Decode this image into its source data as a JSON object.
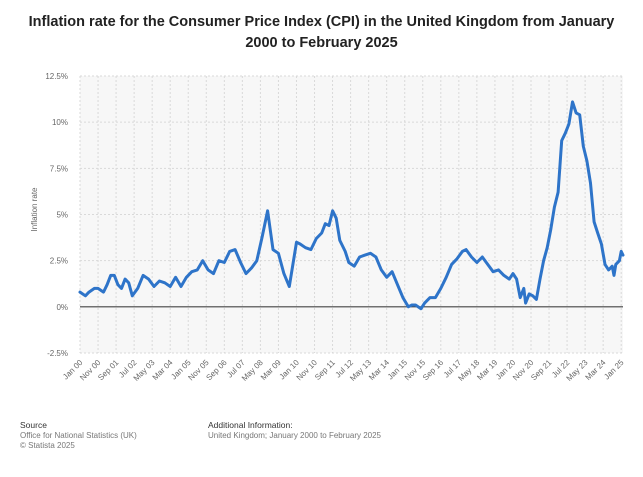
{
  "title": "Inflation rate for the Consumer Price Index (CPI) in the United Kingdom from January 2000 to February 2025",
  "footer": {
    "source_heading": "Source",
    "source_line1": "Office for National Statistics (UK)",
    "source_line2": "© Statista 2025",
    "additional_heading": "Additional Information:",
    "additional_line1": "United Kingdom; January 2000 to February 2025"
  },
  "colors": {
    "line": "#2e74c9",
    "grid": "#d9d9d9",
    "zero_line": "#444444",
    "axis_text": "#666666"
  },
  "chart_data": {
    "type": "line",
    "title": "Inflation rate for the Consumer Price Index (CPI) in the United Kingdom from January 2000 to February 2025",
    "xlabel": "",
    "ylabel": "Inflation rate",
    "ylim": [
      -2.5,
      12.5
    ],
    "yticks": [
      -2.5,
      0,
      2.5,
      5,
      7.5,
      10,
      12.5
    ],
    "ytick_labels": [
      "-2.5%",
      "0%",
      "2.5%",
      "5%",
      "7.5%",
      "10%",
      "12.5%"
    ],
    "xlim": [
      "2000-01",
      "2025-02"
    ],
    "xtick_labels": [
      {
        "label": "Jan 00",
        "date": "2000-01"
      },
      {
        "label": "Nov 00",
        "date": "2000-11"
      },
      {
        "label": "Sep 01",
        "date": "2001-09"
      },
      {
        "label": "Jul 02",
        "date": "2002-07"
      },
      {
        "label": "May 03",
        "date": "2003-05"
      },
      {
        "label": "Mar 04",
        "date": "2004-03"
      },
      {
        "label": "Jan 05",
        "date": "2005-01"
      },
      {
        "label": "Nov 05",
        "date": "2005-11"
      },
      {
        "label": "Sep 06",
        "date": "2006-09"
      },
      {
        "label": "Jul 07",
        "date": "2007-07"
      },
      {
        "label": "May 08",
        "date": "2008-05"
      },
      {
        "label": "Mar 09",
        "date": "2009-03"
      },
      {
        "label": "Jan 10",
        "date": "2010-01"
      },
      {
        "label": "Nov 10",
        "date": "2010-11"
      },
      {
        "label": "Sep 11",
        "date": "2011-09"
      },
      {
        "label": "Jul 12",
        "date": "2012-07"
      },
      {
        "label": "May 13",
        "date": "2013-05"
      },
      {
        "label": "Mar 14",
        "date": "2014-03"
      },
      {
        "label": "Jan 15",
        "date": "2015-01"
      },
      {
        "label": "Nov 15",
        "date": "2015-11"
      },
      {
        "label": "Sep 16",
        "date": "2016-09"
      },
      {
        "label": "Jul 17",
        "date": "2017-07"
      },
      {
        "label": "May 18",
        "date": "2018-05"
      },
      {
        "label": "Mar 19",
        "date": "2019-03"
      },
      {
        "label": "Jan 20",
        "date": "2020-01"
      },
      {
        "label": "Nov 20",
        "date": "2020-11"
      },
      {
        "label": "Sep 21",
        "date": "2021-09"
      },
      {
        "label": "Jul 22",
        "date": "2022-07"
      },
      {
        "label": "May 23",
        "date": "2023-05"
      },
      {
        "label": "Mar 24",
        "date": "2024-03"
      },
      {
        "label": "Jan 25",
        "date": "2025-01"
      }
    ],
    "grid": true,
    "series": [
      {
        "name": "",
        "points": [
          [
            "2000-01",
            0.8
          ],
          [
            "2000-04",
            0.6
          ],
          [
            "2000-06",
            0.8
          ],
          [
            "2000-09",
            1.0
          ],
          [
            "2000-11",
            1.0
          ],
          [
            "2001-02",
            0.8
          ],
          [
            "2001-04",
            1.2
          ],
          [
            "2001-06",
            1.7
          ],
          [
            "2001-08",
            1.7
          ],
          [
            "2001-10",
            1.2
          ],
          [
            "2001-12",
            1.0
          ],
          [
            "2002-02",
            1.5
          ],
          [
            "2002-04",
            1.3
          ],
          [
            "2002-06",
            0.6
          ],
          [
            "2002-09",
            1.0
          ],
          [
            "2002-12",
            1.7
          ],
          [
            "2003-03",
            1.5
          ],
          [
            "2003-06",
            1.1
          ],
          [
            "2003-09",
            1.4
          ],
          [
            "2003-12",
            1.3
          ],
          [
            "2004-03",
            1.1
          ],
          [
            "2004-06",
            1.6
          ],
          [
            "2004-09",
            1.1
          ],
          [
            "2004-12",
            1.6
          ],
          [
            "2005-03",
            1.9
          ],
          [
            "2005-06",
            2.0
          ],
          [
            "2005-09",
            2.5
          ],
          [
            "2005-12",
            2.0
          ],
          [
            "2006-03",
            1.8
          ],
          [
            "2006-06",
            2.5
          ],
          [
            "2006-09",
            2.4
          ],
          [
            "2006-12",
            3.0
          ],
          [
            "2007-03",
            3.1
          ],
          [
            "2007-06",
            2.4
          ],
          [
            "2007-09",
            1.8
          ],
          [
            "2007-12",
            2.1
          ],
          [
            "2008-03",
            2.5
          ],
          [
            "2008-06",
            3.8
          ],
          [
            "2008-09",
            5.2
          ],
          [
            "2008-12",
            3.1
          ],
          [
            "2009-03",
            2.9
          ],
          [
            "2009-06",
            1.8
          ],
          [
            "2009-09",
            1.1
          ],
          [
            "2009-12",
            2.9
          ],
          [
            "2010-01",
            3.5
          ],
          [
            "2010-03",
            3.4
          ],
          [
            "2010-06",
            3.2
          ],
          [
            "2010-09",
            3.1
          ],
          [
            "2010-12",
            3.7
          ],
          [
            "2011-03",
            4.0
          ],
          [
            "2011-05",
            4.5
          ],
          [
            "2011-07",
            4.4
          ],
          [
            "2011-09",
            5.2
          ],
          [
            "2011-11",
            4.8
          ],
          [
            "2012-01",
            3.6
          ],
          [
            "2012-04",
            3.0
          ],
          [
            "2012-06",
            2.4
          ],
          [
            "2012-09",
            2.2
          ],
          [
            "2012-12",
            2.7
          ],
          [
            "2013-03",
            2.8
          ],
          [
            "2013-06",
            2.9
          ],
          [
            "2013-09",
            2.7
          ],
          [
            "2013-12",
            2.0
          ],
          [
            "2014-03",
            1.6
          ],
          [
            "2014-06",
            1.9
          ],
          [
            "2014-09",
            1.2
          ],
          [
            "2014-12",
            0.5
          ],
          [
            "2015-03",
            0.0
          ],
          [
            "2015-05",
            0.1
          ],
          [
            "2015-07",
            0.1
          ],
          [
            "2015-10",
            -0.1
          ],
          [
            "2015-12",
            0.2
          ],
          [
            "2016-03",
            0.5
          ],
          [
            "2016-06",
            0.5
          ],
          [
            "2016-09",
            1.0
          ],
          [
            "2016-12",
            1.6
          ],
          [
            "2017-03",
            2.3
          ],
          [
            "2017-06",
            2.6
          ],
          [
            "2017-09",
            3.0
          ],
          [
            "2017-11",
            3.1
          ],
          [
            "2018-02",
            2.7
          ],
          [
            "2018-05",
            2.4
          ],
          [
            "2018-08",
            2.7
          ],
          [
            "2018-11",
            2.3
          ],
          [
            "2019-02",
            1.9
          ],
          [
            "2019-05",
            2.0
          ],
          [
            "2019-08",
            1.7
          ],
          [
            "2019-11",
            1.5
          ],
          [
            "2020-01",
            1.8
          ],
          [
            "2020-03",
            1.5
          ],
          [
            "2020-05",
            0.5
          ],
          [
            "2020-07",
            1.0
          ],
          [
            "2020-08",
            0.2
          ],
          [
            "2020-10",
            0.7
          ],
          [
            "2020-12",
            0.6
          ],
          [
            "2021-02",
            0.4
          ],
          [
            "2021-04",
            1.5
          ],
          [
            "2021-06",
            2.5
          ],
          [
            "2021-08",
            3.2
          ],
          [
            "2021-10",
            4.2
          ],
          [
            "2021-12",
            5.4
          ],
          [
            "2022-02",
            6.2
          ],
          [
            "2022-04",
            9.0
          ],
          [
            "2022-06",
            9.4
          ],
          [
            "2022-08",
            9.9
          ],
          [
            "2022-10",
            11.1
          ],
          [
            "2022-12",
            10.5
          ],
          [
            "2023-02",
            10.4
          ],
          [
            "2023-04",
            8.7
          ],
          [
            "2023-06",
            7.9
          ],
          [
            "2023-08",
            6.7
          ],
          [
            "2023-10",
            4.6
          ],
          [
            "2023-12",
            4.0
          ],
          [
            "2024-02",
            3.4
          ],
          [
            "2024-04",
            2.3
          ],
          [
            "2024-06",
            2.0
          ],
          [
            "2024-08",
            2.2
          ],
          [
            "2024-09",
            1.7
          ],
          [
            "2024-10",
            2.3
          ],
          [
            "2024-12",
            2.5
          ],
          [
            "2025-01",
            3.0
          ],
          [
            "2025-02",
            2.8
          ]
        ]
      }
    ]
  }
}
